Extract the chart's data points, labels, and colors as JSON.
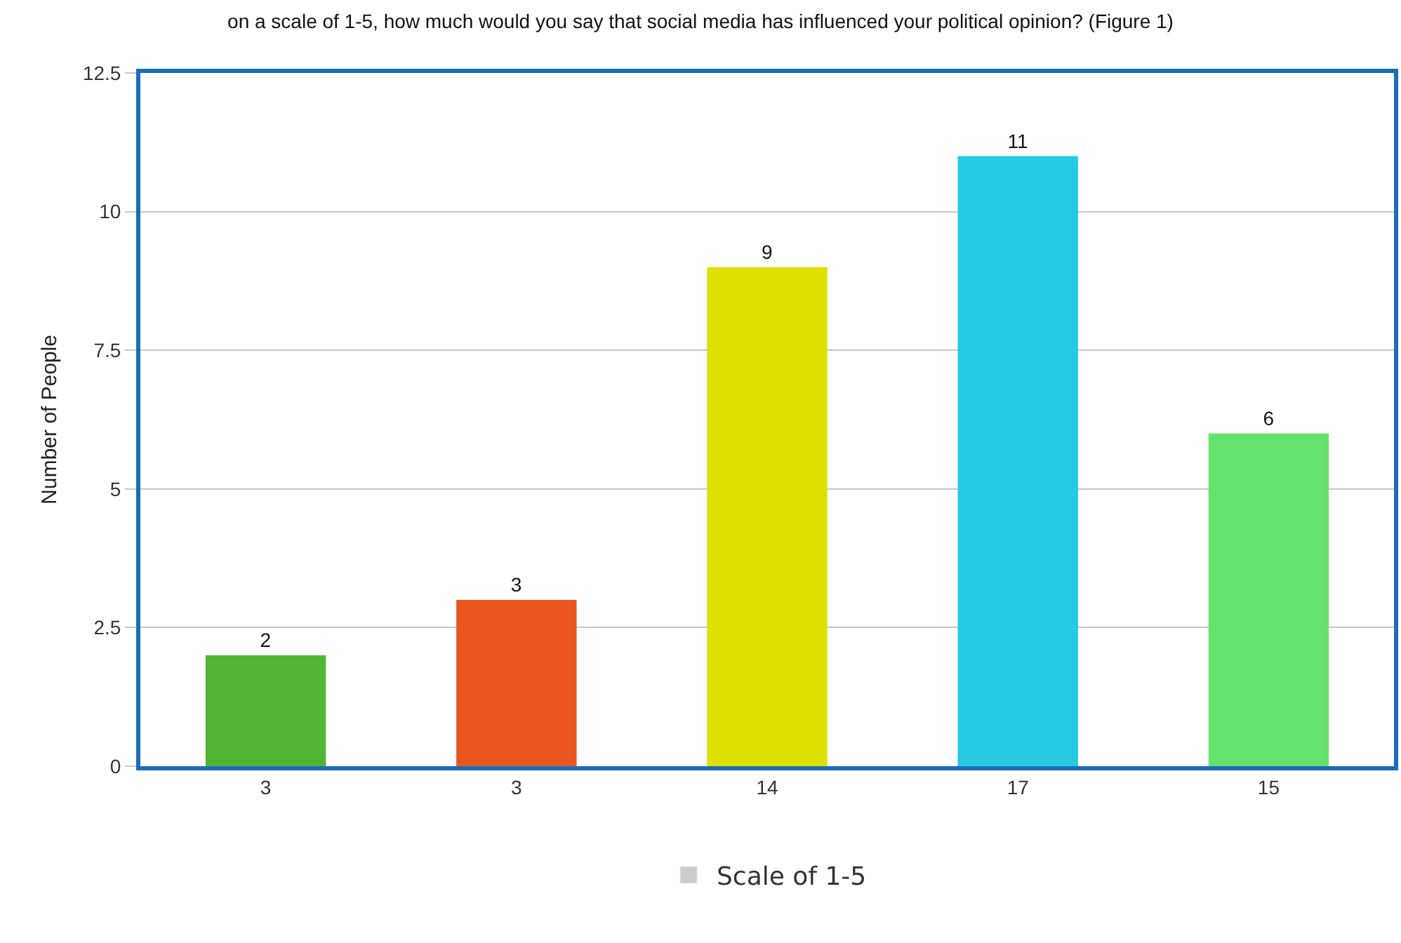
{
  "chart_data": {
    "type": "bar",
    "title": "on a scale of 1-5, how much would you say that social media has influenced your political opinion? (Figure 1)",
    "ylabel": "Number of People",
    "categories": [
      "3",
      "3",
      "14",
      "17",
      "15"
    ],
    "series": [
      {
        "name": "Scale of 1-5",
        "color": "#cccccc",
        "colors": [
          "#52b435",
          "#eb5720",
          "#dee000",
          "#25c9e3",
          "#65e26e"
        ],
        "values": [
          2,
          3,
          9,
          11,
          6
        ]
      }
    ],
    "ylim": [
      0,
      12.5
    ],
    "yticks": [
      0,
      2.5,
      5,
      7.5,
      10,
      12.5
    ],
    "grid": "y",
    "legend": "bottom",
    "data_labels": true
  }
}
